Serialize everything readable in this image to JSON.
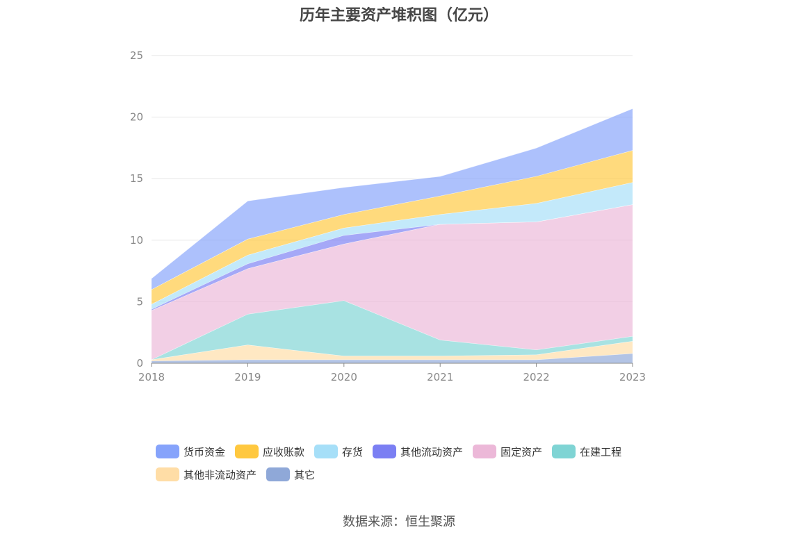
{
  "title": "历年主要资产堆积图（亿元）",
  "source": "数据来源：恒生聚源",
  "chart_data": {
    "type": "area",
    "stacked": true,
    "categories": [
      "2018",
      "2019",
      "2020",
      "2021",
      "2022",
      "2023"
    ],
    "ylim": [
      0,
      25
    ],
    "yticks": [
      0,
      5,
      10,
      15,
      20,
      25
    ],
    "grid": true,
    "legend_position": "bottom",
    "series": [
      {
        "name": "其它",
        "color": "#8fa8d8",
        "values": [
          0.2,
          0.3,
          0.3,
          0.3,
          0.3,
          0.8
        ]
      },
      {
        "name": "其他非流动资产",
        "color": "#ffdda6",
        "values": [
          0.1,
          1.2,
          0.3,
          0.3,
          0.4,
          1.0
        ]
      },
      {
        "name": "在建工程",
        "color": "#7fd4d4",
        "values": [
          0.0,
          2.5,
          4.5,
          1.3,
          0.4,
          0.4
        ]
      },
      {
        "name": "固定资产",
        "color": "#ecb8d8",
        "values": [
          4.0,
          3.7,
          4.6,
          9.4,
          10.4,
          10.7
        ]
      },
      {
        "name": "其他流动资产",
        "color": "#7b7ff3",
        "values": [
          0.1,
          0.4,
          0.7,
          0.0,
          0.0,
          0.0
        ]
      },
      {
        "name": "存货",
        "color": "#a6dff8",
        "values": [
          0.4,
          0.7,
          0.6,
          0.8,
          1.5,
          1.8
        ]
      },
      {
        "name": "应收账款",
        "color": "#ffc83f",
        "values": [
          1.2,
          1.3,
          1.1,
          1.5,
          2.2,
          2.6
        ]
      },
      {
        "name": "货币资金",
        "color": "#86a3fb",
        "values": [
          0.9,
          3.1,
          2.2,
          1.6,
          2.3,
          3.4
        ]
      }
    ]
  }
}
